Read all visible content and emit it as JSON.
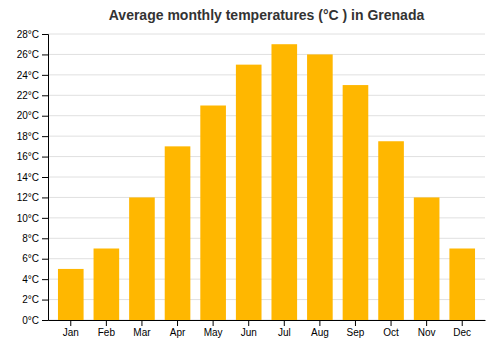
{
  "chart_data": {
    "type": "bar",
    "title": "Average monthly temperatures (°C ) in Grenada",
    "categories": [
      "Jan",
      "Feb",
      "Mar",
      "Apr",
      "May",
      "Jun",
      "Jul",
      "Aug",
      "Sep",
      "Oct",
      "Nov",
      "Dec"
    ],
    "values": [
      5,
      7,
      12,
      17,
      21,
      25,
      27,
      26,
      23,
      17.5,
      12,
      7
    ],
    "color": "#FFB700",
    "ylim": [
      0,
      28
    ],
    "yticks": [
      {
        "value": 0,
        "label": "0°C"
      },
      {
        "value": 2,
        "label": "2°C"
      },
      {
        "value": 4,
        "label": "4°C"
      },
      {
        "value": 6,
        "label": "6°C"
      },
      {
        "value": 8,
        "label": "8°C"
      },
      {
        "value": 10,
        "label": "10°C"
      },
      {
        "value": 12,
        "label": "12°C"
      },
      {
        "value": 14,
        "label": "14°C"
      },
      {
        "value": 16,
        "label": "16°C"
      },
      {
        "value": 18,
        "label": "18°C"
      },
      {
        "value": 20,
        "label": "20°C"
      },
      {
        "value": 22,
        "label": "22°C"
      },
      {
        "value": 24,
        "label": "24°C"
      },
      {
        "value": 26,
        "label": "26°C"
      },
      {
        "value": 28,
        "label": "28°C"
      }
    ],
    "grid": true
  }
}
